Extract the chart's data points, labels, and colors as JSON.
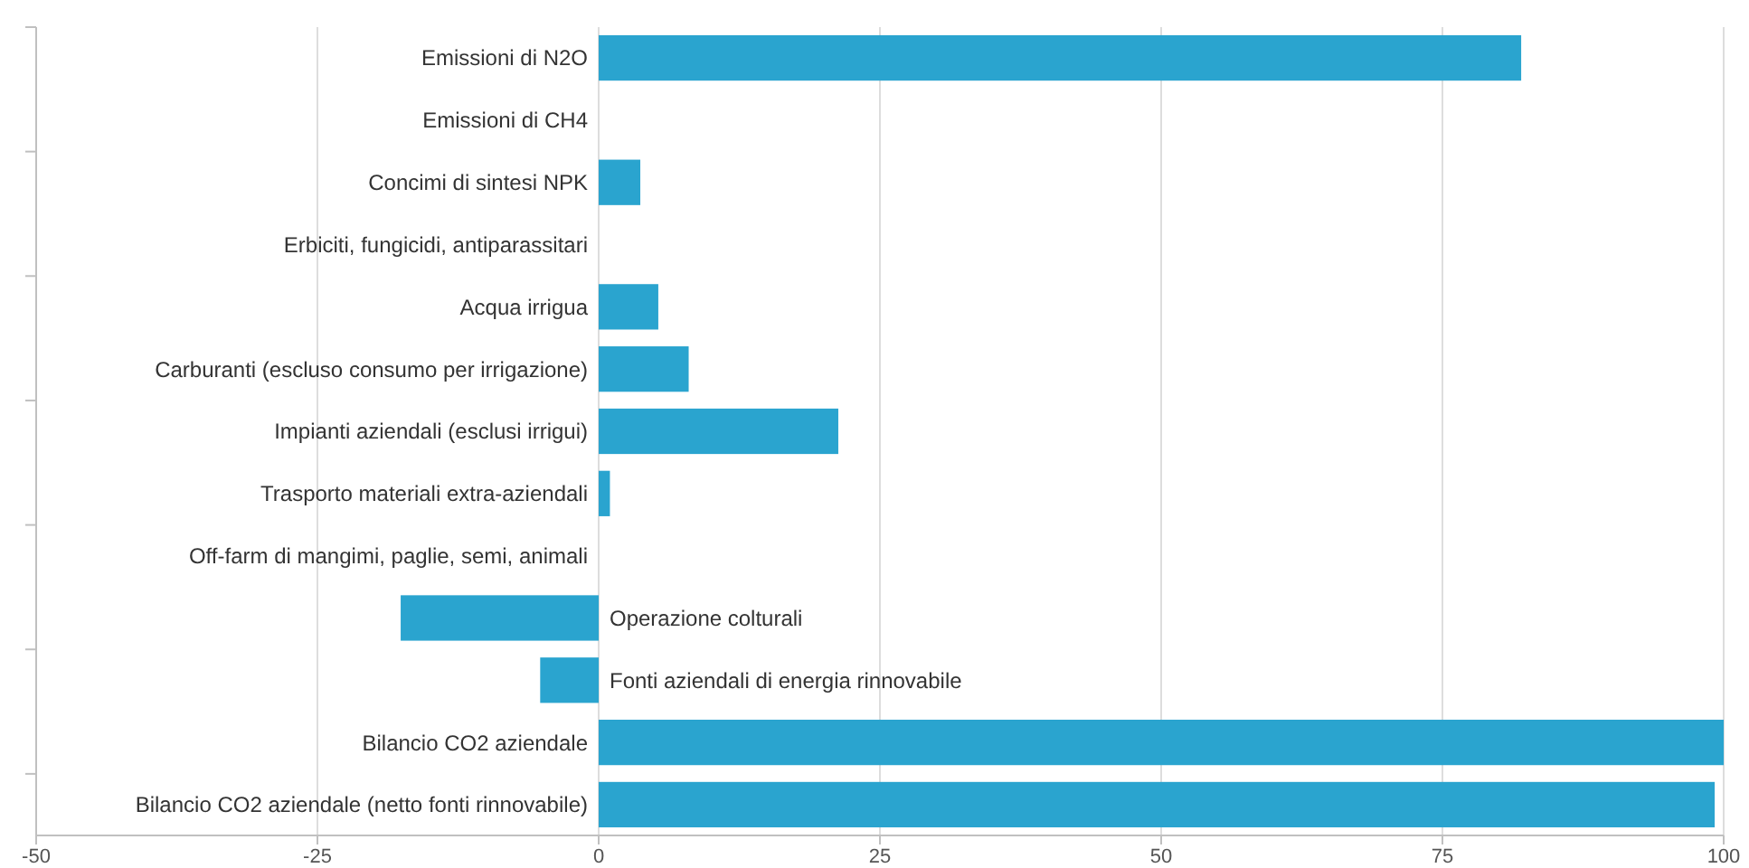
{
  "chart_data": {
    "type": "bar",
    "orientation": "horizontal",
    "categories": [
      "Emissioni di N2O",
      "Emissioni di CH4",
      "Concimi di sintesi NPK",
      "Erbiciti, fungicidi, antiparassitari",
      "Acqua irrigua",
      "Carburanti (escluso consumo per irrigazione)",
      "Impianti aziendali (esclusi irrigui)",
      "Trasporto materiali extra-aziendali",
      "Off-farm di mangimi, paglie, semi, animali",
      "Operazione colturali",
      "Fonti aziendali di energia rinnovabile",
      "Bilancio CO2 aziendale",
      "Bilancio CO2 aziendale (netto fonti rinnovabile)"
    ],
    "values": [
      82,
      0,
      3.7,
      0,
      5.3,
      8,
      21.3,
      1,
      0,
      -17.6,
      -5.2,
      100,
      99.2
    ],
    "color": "#2aa4cf",
    "xlim": [
      -50,
      100
    ],
    "xticks": [
      -50,
      -25,
      0,
      25,
      50,
      75,
      100
    ],
    "grid": "x"
  }
}
